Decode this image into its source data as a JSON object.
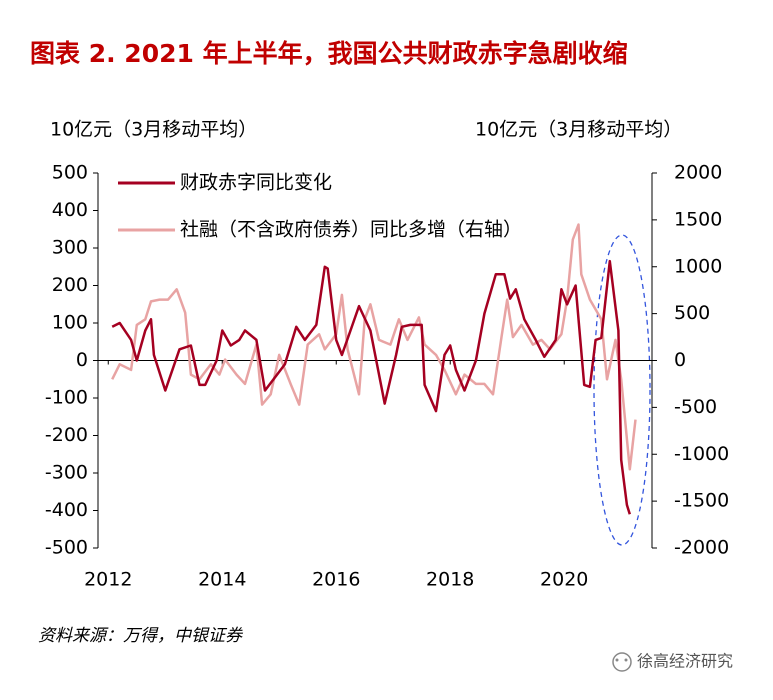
{
  "chart_data": {
    "type": "line",
    "title": "图表 2.  2021 年上半年，我国公共财政赤字急剧收缩",
    "y_label": "10亿元（3月移动平均）",
    "y2_label": "10亿元（3月移动平均）",
    "source": "资料来源：万得，中银证券",
    "watermark": "徐高经济研究",
    "xlim": [
      2011.82,
      2021.54
    ],
    "xticks": [
      2012,
      2014,
      2016,
      2018,
      2020
    ],
    "ylim": [
      -500,
      500
    ],
    "yticks": [
      -500,
      -400,
      -300,
      -200,
      -100,
      0,
      100,
      200,
      300,
      400,
      500
    ],
    "y2lim": [
      -2000,
      2000
    ],
    "y2ticks": [
      -2000,
      -1500,
      -1000,
      -500,
      0,
      500,
      1000,
      1500,
      2000
    ],
    "series": [
      {
        "name": "财政赤字同比变化",
        "color": "#a50021",
        "x": [
          2012.07,
          2012.2,
          2012.4,
          2012.5,
          2012.65,
          2012.75,
          2012.8,
          2013.0,
          2013.25,
          2013.45,
          2013.6,
          2013.7,
          2013.9,
          2014.0,
          2014.15,
          2014.3,
          2014.4,
          2014.6,
          2014.75,
          2014.95,
          2015.1,
          2015.3,
          2015.45,
          2015.65,
          2015.8,
          2015.85,
          2016.0,
          2016.1,
          2016.25,
          2016.4,
          2016.6,
          2016.85,
          2017.05,
          2017.15,
          2017.3,
          2017.5,
          2017.55,
          2017.75,
          2017.9,
          2018.0,
          2018.1,
          2018.25,
          2018.45,
          2018.6,
          2018.8,
          2018.95,
          2019.05,
          2019.15,
          2019.3,
          2019.5,
          2019.65,
          2019.85,
          2019.95,
          2020.05,
          2020.2,
          2020.35,
          2020.45,
          2020.55,
          2020.65,
          2020.8,
          2020.95,
          2021.0,
          2021.1,
          2021.15
        ],
        "values": [
          90,
          100,
          55,
          0,
          80,
          110,
          15,
          -80,
          30,
          40,
          -65,
          -65,
          0,
          80,
          40,
          55,
          80,
          55,
          -80,
          -40,
          -10,
          90,
          55,
          95,
          250,
          245,
          55,
          15,
          80,
          145,
          80,
          -115,
          15,
          90,
          95,
          95,
          -65,
          -135,
          15,
          40,
          -25,
          -80,
          0,
          125,
          230,
          230,
          165,
          190,
          110,
          55,
          10,
          55,
          190,
          150,
          200,
          -65,
          -70,
          55,
          60,
          265,
          80,
          -265,
          -385,
          -410
        ]
      },
      {
        "name": "社融（不含政府债券）同比多增（右轴）",
        "color": "#e8a3a3",
        "axis": "y2",
        "x": [
          2012.07,
          2012.2,
          2012.4,
          2012.5,
          2012.65,
          2012.75,
          2012.9,
          2013.05,
          2013.2,
          2013.35,
          2013.45,
          2013.6,
          2013.8,
          2013.95,
          2014.05,
          2014.25,
          2014.4,
          2014.6,
          2014.7,
          2014.85,
          2015.0,
          2015.2,
          2015.35,
          2015.5,
          2015.7,
          2015.8,
          2016.0,
          2016.1,
          2016.2,
          2016.4,
          2016.5,
          2016.6,
          2016.75,
          2016.95,
          2017.1,
          2017.25,
          2017.45,
          2017.55,
          2017.75,
          2017.9,
          2018.1,
          2018.25,
          2018.45,
          2018.6,
          2018.75,
          2018.9,
          2019.0,
          2019.1,
          2019.25,
          2019.45,
          2019.6,
          2019.75,
          2019.95,
          2020.05,
          2020.15,
          2020.25,
          2020.3,
          2020.45,
          2020.65,
          2020.75,
          2020.9,
          2021.0,
          2021.15,
          2021.25
        ],
        "values": [
          -200,
          -40,
          -100,
          380,
          440,
          630,
          650,
          650,
          760,
          510,
          -150,
          -200,
          -40,
          -150,
          10,
          -150,
          -250,
          170,
          -470,
          -360,
          60,
          -250,
          -470,
          170,
          280,
          120,
          280,
          700,
          120,
          -360,
          440,
          600,
          220,
          170,
          440,
          220,
          460,
          170,
          60,
          -100,
          -360,
          -150,
          -250,
          -250,
          -360,
          250,
          650,
          250,
          380,
          170,
          220,
          120,
          280,
          650,
          1290,
          1450,
          920,
          650,
          440,
          -200,
          220,
          -200,
          -1160,
          -630
        ]
      }
    ]
  }
}
